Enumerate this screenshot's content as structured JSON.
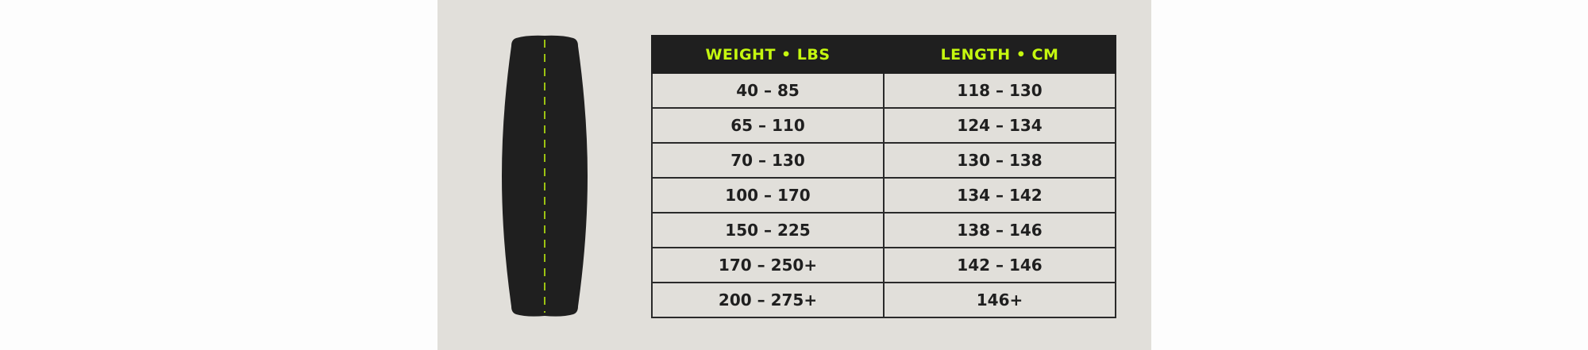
{
  "colors": {
    "panel": "#e1dfda",
    "header_bg": "#1f1f1f",
    "header_text": "#c5f80f",
    "board": "#1f1f1f",
    "stringer": "#c5f80f"
  },
  "board_icon": "wakeboard-silhouette",
  "table": {
    "headers": [
      "WEIGHT • LBS",
      "LENGTH • CM"
    ],
    "rows": [
      [
        "40 – 85",
        "118 – 130"
      ],
      [
        "65 – 110",
        "124 – 134"
      ],
      [
        "70 – 130",
        "130 – 138"
      ],
      [
        "100 – 170",
        "134 – 142"
      ],
      [
        "150 – 225",
        "138 – 146"
      ],
      [
        "170 – 250+",
        "142 – 146"
      ],
      [
        "200 – 275+",
        "146+"
      ]
    ]
  }
}
